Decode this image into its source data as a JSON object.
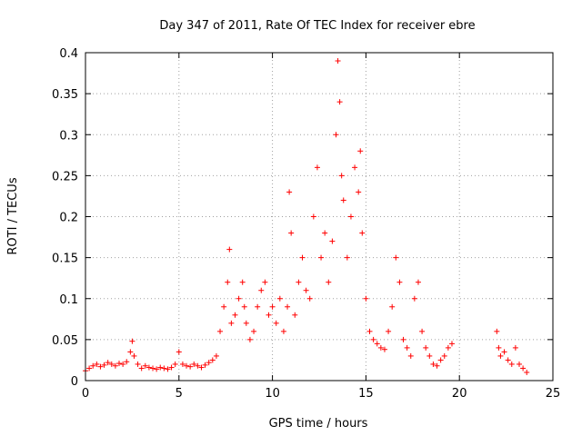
{
  "chart_data": {
    "type": "scatter",
    "title": "Day 347 of 2011, Rate Of TEC Index for receiver ebre",
    "xlabel": "GPS time / hours",
    "ylabel": "ROTI / TECUs",
    "xlim": [
      0,
      25
    ],
    "ylim": [
      0,
      0.4
    ],
    "xticks": [
      "0",
      "5",
      "10",
      "15",
      "20",
      "25"
    ],
    "yticks": [
      "0",
      "0.05",
      "0.1",
      "0.15",
      "0.2",
      "0.25",
      "0.3",
      "0.35",
      "0.4"
    ],
    "grid": true,
    "marker": "+",
    "color": "#ff0000",
    "series": [
      {
        "x": [
          0.0,
          0.2,
          0.4,
          0.6,
          0.8,
          1.0,
          1.2,
          1.4,
          1.6,
          1.8,
          2.0,
          2.2,
          2.4,
          2.5,
          2.6,
          2.8,
          3.0,
          3.2,
          3.4,
          3.6,
          3.8,
          4.0,
          4.2,
          4.4,
          4.6,
          4.8,
          5.0,
          5.2,
          5.4,
          5.6,
          5.8,
          6.0,
          6.2,
          6.4,
          6.6,
          6.8,
          7.0,
          7.2,
          7.4,
          7.6,
          7.7,
          7.8,
          8.0,
          8.2,
          8.4,
          8.5,
          8.6,
          8.8,
          9.0,
          9.2,
          9.4,
          9.6,
          9.8,
          10.0,
          10.2,
          10.4,
          10.6,
          10.8,
          10.9,
          11.0,
          11.2,
          11.4,
          11.6,
          11.8,
          12.0,
          12.2,
          12.4,
          12.6,
          12.8,
          13.0,
          13.2,
          13.4,
          13.5,
          13.6,
          13.7,
          13.8,
          14.0,
          14.2,
          14.4,
          14.6,
          14.7,
          14.8,
          15.0,
          15.2,
          15.4,
          15.6,
          15.8,
          16.0,
          16.2,
          16.4,
          16.6,
          16.8,
          17.0,
          17.2,
          17.4,
          17.6,
          17.8,
          18.0,
          18.2,
          18.4,
          18.6,
          18.8,
          19.0,
          19.2,
          19.4,
          19.6,
          22.0,
          22.1,
          22.2,
          22.4,
          22.6,
          22.8,
          23.0,
          23.2,
          23.4,
          23.6
        ],
        "y": [
          0.012,
          0.015,
          0.018,
          0.02,
          0.017,
          0.019,
          0.022,
          0.02,
          0.018,
          0.021,
          0.02,
          0.023,
          0.035,
          0.048,
          0.03,
          0.02,
          0.015,
          0.018,
          0.016,
          0.015,
          0.014,
          0.016,
          0.015,
          0.014,
          0.016,
          0.02,
          0.035,
          0.02,
          0.018,
          0.017,
          0.02,
          0.018,
          0.016,
          0.019,
          0.022,
          0.025,
          0.03,
          0.06,
          0.09,
          0.12,
          0.16,
          0.07,
          0.08,
          0.1,
          0.12,
          0.09,
          0.07,
          0.05,
          0.06,
          0.09,
          0.11,
          0.12,
          0.08,
          0.09,
          0.07,
          0.1,
          0.06,
          0.09,
          0.23,
          0.18,
          0.08,
          0.12,
          0.15,
          0.11,
          0.1,
          0.2,
          0.26,
          0.15,
          0.18,
          0.12,
          0.17,
          0.3,
          0.39,
          0.34,
          0.25,
          0.22,
          0.15,
          0.2,
          0.26,
          0.23,
          0.28,
          0.18,
          0.1,
          0.06,
          0.05,
          0.045,
          0.04,
          0.038,
          0.06,
          0.09,
          0.15,
          0.12,
          0.05,
          0.04,
          0.03,
          0.1,
          0.12,
          0.06,
          0.04,
          0.03,
          0.02,
          0.018,
          0.025,
          0.03,
          0.04,
          0.045,
          0.06,
          0.04,
          0.03,
          0.035,
          0.025,
          0.02,
          0.04,
          0.02,
          0.015,
          0.01
        ]
      }
    ]
  }
}
